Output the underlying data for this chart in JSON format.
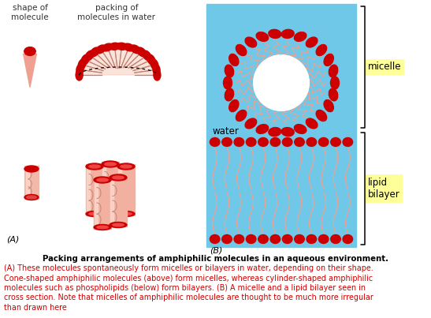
{
  "title": "Packing arrangements of amphiphilic molecules in an aqueous environment.",
  "caption_line1": "(A) These molecules spontaneously form micelles or bilayers in water, depending on their shape.",
  "caption_line2": "Cone-shaped amphiphilic molecules (above) form micelles, whereas cylinder-shaped amphiphilic",
  "caption_line3": "molecules such as phospholipids (below) form bilayers. (B) A micelle and a lipid bilayer seen in",
  "caption_line4": "cross section. Note that micelles of amphiphilic molecules are thought to be much more irregular",
  "caption_line5": "than drawn here",
  "label_shape": "shape of\nmolecule",
  "label_packing": "packing of\nmolecules in water",
  "label_A": "(A)",
  "label_B": "(B)",
  "label_water": "water",
  "label_micelle": "micelle",
  "label_lipid": "lipid\nbilayer",
  "bg_color": "#6FC8E8",
  "micelle_label_bg": "#FFFF99",
  "bilayer_label_bg": "#FFFF99",
  "head_color": "#CC0000",
  "tail_color": "#F0A090",
  "tail_color2": "#EAB0A0"
}
